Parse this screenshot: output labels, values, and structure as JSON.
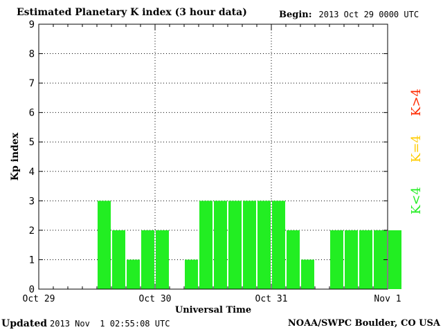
{
  "header": {
    "title": "Estimated Planetary K index (3 hour data)",
    "begin_label": "Begin:",
    "begin_value": "2013 Oct 29 0000 UTC"
  },
  "footer": {
    "updated_label": "Updated",
    "updated_value": "2013 Nov  1 02:55:08 UTC",
    "source": "NOAA/SWPC Boulder, CO USA"
  },
  "legend": {
    "high": {
      "text": "K>4",
      "color": "#ff2a00"
    },
    "equal": {
      "text": "K=4",
      "color": "#ffcc00"
    },
    "low": {
      "text": "K<4",
      "color": "#22ee22"
    }
  },
  "chart_data": {
    "type": "bar",
    "ylabel": "Kp index",
    "xlabel": "Universal Time",
    "ylim": [
      0,
      9
    ],
    "y_ticks": [
      0,
      1,
      2,
      3,
      4,
      5,
      6,
      7,
      8,
      9
    ],
    "x_ticks": [
      "Oct 29",
      "Oct 30",
      "Oct 31",
      "Nov 1"
    ],
    "bar_interval_hours": 3,
    "bar_color": "#22ee22",
    "grid": "dotted",
    "values": [
      0,
      0,
      0,
      0,
      3,
      2,
      1,
      2,
      2,
      0,
      1,
      3,
      3,
      3,
      3,
      3,
      3,
      2,
      1,
      0,
      2,
      2,
      2,
      2,
      2
    ]
  }
}
